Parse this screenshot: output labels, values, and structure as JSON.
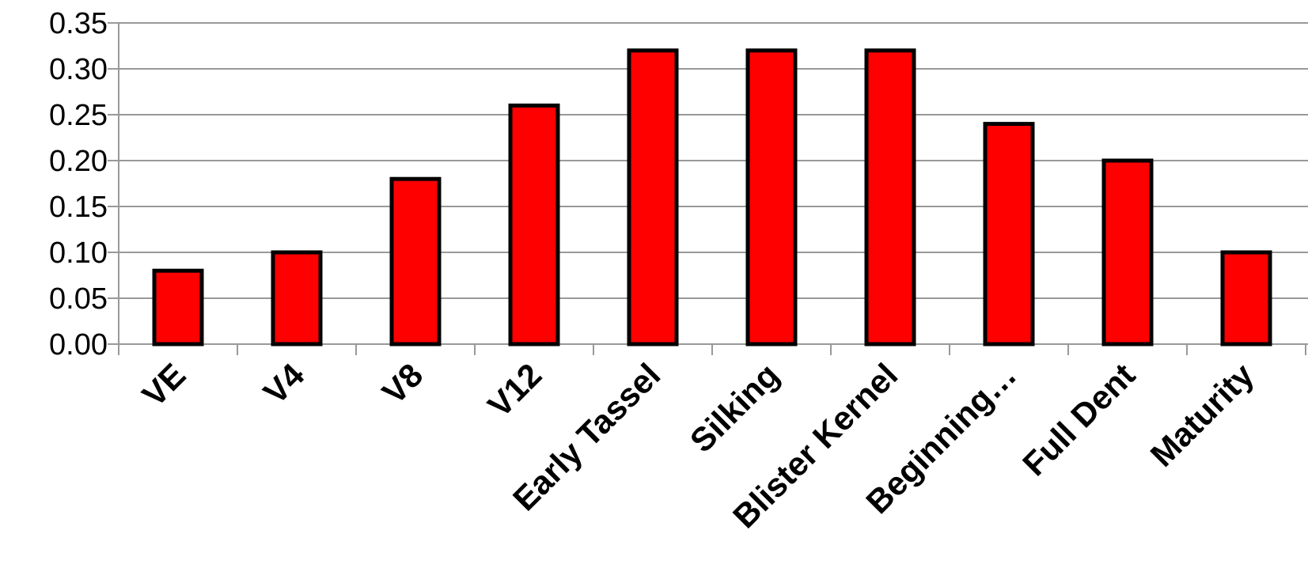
{
  "chart_data": {
    "type": "bar",
    "title": "",
    "xlabel": "",
    "ylabel": "",
    "categories": [
      "VE",
      "V4",
      "V8",
      "V12",
      "Early Tassel",
      "Silking",
      "Blister Kernel",
      "Beginning…",
      "Full Dent",
      "Maturity"
    ],
    "values": [
      0.08,
      0.1,
      0.18,
      0.26,
      0.32,
      0.32,
      0.32,
      0.24,
      0.2,
      0.1
    ],
    "yticks": [
      "0.00",
      "0.05",
      "0.10",
      "0.15",
      "0.20",
      "0.25",
      "0.30",
      "0.35"
    ],
    "ylim": [
      0,
      0.35
    ],
    "grid": true,
    "legend": "none",
    "bar_color": "#ff0000",
    "bar_edge_color": "#000000",
    "grid_color": "#999999"
  }
}
